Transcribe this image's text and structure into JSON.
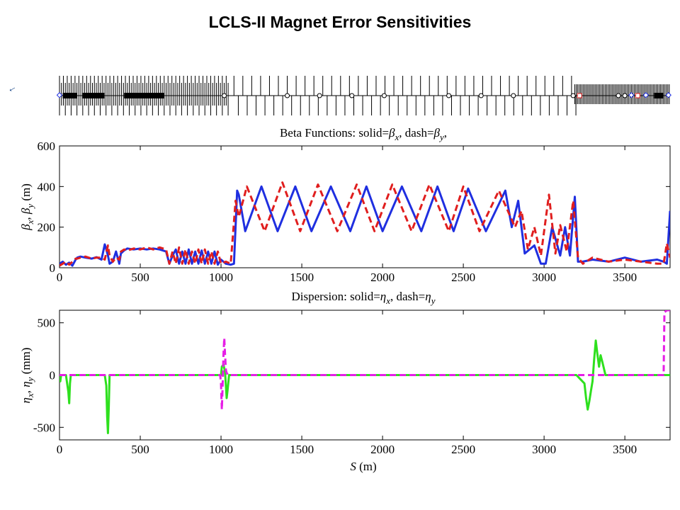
{
  "slide": {
    "title": "LCLS-II Magnet Error Sensitivities"
  },
  "lattice": {
    "side_label": "←"
  },
  "chart_data": [
    {
      "type": "line",
      "title_parts": [
        "Beta Functions:  solid=",
        "β",
        "x",
        ", dash=",
        "β",
        "y",
        ","
      ],
      "ylabel_parts": [
        "β",
        "x",
        ", ",
        "β",
        "y",
        " (m)"
      ],
      "xlim": [
        0,
        3780
      ],
      "ylim": [
        0,
        600
      ],
      "xticks": [
        "0",
        "500",
        "1000",
        "1500",
        "2000",
        "2500",
        "3000",
        "3500"
      ],
      "yticks": [
        "0",
        "200",
        "400",
        "600"
      ],
      "series": [
        {
          "name": "βx",
          "style": "solid",
          "color": "#1f2fe0",
          "x": [
            0,
            20,
            40,
            60,
            80,
            100,
            110,
            130,
            160,
            200,
            230,
            260,
            280,
            290,
            300,
            310,
            330,
            350,
            370,
            380,
            400,
            420,
            460,
            500,
            540,
            580,
            620,
            660,
            680,
            700,
            720,
            740,
            760,
            780,
            800,
            820,
            840,
            860,
            880,
            900,
            920,
            940,
            960,
            980,
            1000,
            1030,
            1060,
            1080,
            1100,
            1110,
            1150,
            1250,
            1350,
            1460,
            1560,
            1680,
            1800,
            1900,
            2000,
            2120,
            2240,
            2340,
            2440,
            2530,
            2640,
            2760,
            2800,
            2840,
            2880,
            2940,
            2980,
            3010,
            3050,
            3100,
            3130,
            3160,
            3190,
            3210,
            3240,
            3300,
            3400,
            3500,
            3600,
            3700,
            3740,
            3760,
            3770,
            3780
          ],
          "y": [
            20,
            30,
            15,
            25,
            10,
            40,
            50,
            55,
            50,
            45,
            52,
            40,
            115,
            90,
            60,
            20,
            30,
            80,
            20,
            70,
            85,
            95,
            90,
            95,
            90,
            95,
            90,
            80,
            20,
            60,
            90,
            20,
            80,
            20,
            90,
            20,
            80,
            20,
            85,
            20,
            80,
            20,
            80,
            15,
            40,
            20,
            15,
            20,
            380,
            360,
            180,
            400,
            180,
            400,
            180,
            400,
            180,
            400,
            180,
            400,
            180,
            400,
            180,
            390,
            180,
            380,
            200,
            330,
            70,
            110,
            20,
            20,
            200,
            60,
            200,
            60,
            350,
            30,
            30,
            40,
            30,
            50,
            30,
            40,
            30,
            20,
            150,
            280
          ]
        },
        {
          "name": "βy",
          "style": "dash",
          "color": "#e01e1e",
          "x": [
            0,
            20,
            40,
            60,
            80,
            100,
            110,
            130,
            160,
            200,
            230,
            260,
            280,
            300,
            310,
            330,
            350,
            370,
            380,
            400,
            420,
            460,
            500,
            540,
            580,
            620,
            660,
            680,
            700,
            720,
            740,
            760,
            780,
            800,
            820,
            840,
            860,
            880,
            900,
            920,
            940,
            960,
            980,
            1000,
            1030,
            1060,
            1090,
            1110,
            1160,
            1270,
            1380,
            1490,
            1600,
            1720,
            1840,
            1950,
            2060,
            2180,
            2290,
            2410,
            2500,
            2600,
            2720,
            2820,
            2860,
            2900,
            2940,
            2980,
            3030,
            3070,
            3100,
            3140,
            3180,
            3210,
            3240,
            3300,
            3400,
            3500,
            3600,
            3700,
            3740,
            3760,
            3780
          ],
          "y": [
            10,
            20,
            30,
            15,
            30,
            45,
            45,
            50,
            55,
            45,
            50,
            50,
            40,
            110,
            60,
            30,
            50,
            40,
            80,
            90,
            85,
            95,
            90,
            100,
            90,
            100,
            90,
            20,
            80,
            20,
            100,
            20,
            90,
            20,
            80,
            20,
            90,
            20,
            90,
            20,
            80,
            20,
            80,
            20,
            30,
            20,
            330,
            250,
            400,
            180,
            420,
            180,
            410,
            180,
            410,
            180,
            410,
            180,
            410,
            180,
            400,
            180,
            380,
            200,
            280,
            90,
            200,
            60,
            360,
            70,
            210,
            80,
            330,
            50,
            20,
            50,
            30,
            40,
            30,
            20,
            20,
            120,
            50
          ]
        }
      ]
    },
    {
      "type": "line",
      "title_parts": [
        "Dispersion:  solid=",
        "η",
        "x",
        ", dash=",
        "η",
        "y"
      ],
      "ylabel_parts": [
        "η",
        "x",
        ", ",
        "η",
        "y",
        " (mm)"
      ],
      "xlabel_parts": [
        "S",
        " (m)"
      ],
      "xlim": [
        0,
        3780
      ],
      "ylim": [
        -620,
        620
      ],
      "xticks": [
        "0",
        "500",
        "1000",
        "1500",
        "2000",
        "2500",
        "3000",
        "3500"
      ],
      "yticks": [
        "-500",
        "0",
        "500"
      ],
      "series": [
        {
          "name": "ηx",
          "style": "solid",
          "color": "#2ee01e",
          "x": [
            0,
            5,
            10,
            40,
            55,
            60,
            65,
            70,
            80,
            200,
            280,
            290,
            295,
            300,
            305,
            310,
            320,
            600,
            900,
            1000,
            1005,
            1015,
            1025,
            1035,
            1040,
            1050,
            1060,
            1300,
            1700,
            2000,
            2500,
            3000,
            3200,
            3250,
            3260,
            3270,
            3280,
            3290,
            3300,
            3310,
            3320,
            3330,
            3340,
            3350,
            3360,
            3380,
            3500,
            3700,
            3780
          ],
          "y": [
            0,
            -60,
            0,
            0,
            -160,
            -270,
            -80,
            0,
            0,
            0,
            0,
            -100,
            -400,
            -555,
            -300,
            0,
            0,
            0,
            0,
            0,
            80,
            100,
            30,
            -220,
            -150,
            0,
            0,
            0,
            0,
            0,
            0,
            0,
            0,
            -80,
            -220,
            -330,
            -250,
            -150,
            -60,
            150,
            330,
            200,
            80,
            190,
            130,
            0,
            0,
            0,
            0
          ]
        },
        {
          "name": "ηy",
          "style": "dash",
          "color": "#e61ee6",
          "x": [
            0,
            300,
            600,
            900,
            995,
            1000,
            1005,
            1010,
            1015,
            1020,
            1025,
            1030,
            1035,
            1045,
            1060,
            1300,
            1600,
            2000,
            2400,
            2800,
            3300,
            3500,
            3700,
            3740,
            3745,
            3760,
            3780
          ],
          "y": [
            0,
            0,
            0,
            0,
            0,
            -80,
            -330,
            -100,
            200,
            355,
            200,
            50,
            20,
            0,
            0,
            0,
            0,
            0,
            0,
            0,
            0,
            0,
            0,
            0,
            600,
            620,
            620
          ]
        }
      ]
    }
  ]
}
